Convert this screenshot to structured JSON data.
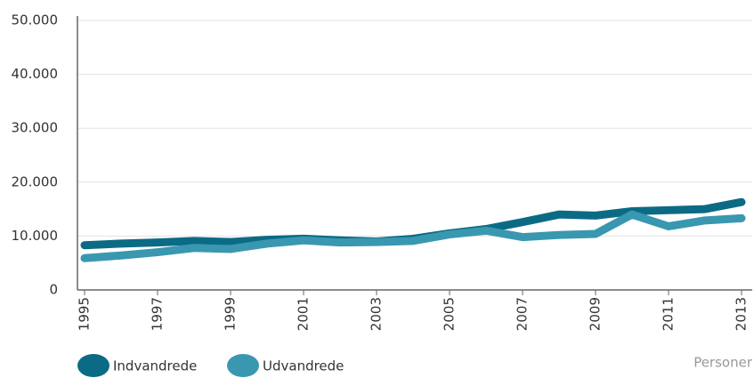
{
  "chart_data": {
    "type": "line",
    "x": [
      1995,
      1996,
      1997,
      1998,
      1999,
      2000,
      2001,
      2002,
      2003,
      2004,
      2005,
      2006,
      2007,
      2008,
      2009,
      2010,
      2011,
      2012,
      2013
    ],
    "series": [
      {
        "name": "Indvandrede",
        "color": "#0b6b85",
        "values": [
          8300,
          8600,
          8800,
          9100,
          8900,
          9300,
          9500,
          9200,
          9000,
          9500,
          10500,
          11300,
          12600,
          14000,
          13800,
          14600,
          14800,
          15000,
          16300
        ]
      },
      {
        "name": "Udvandrede",
        "color": "#3a97b0",
        "values": [
          5900,
          6400,
          7000,
          7800,
          7600,
          8600,
          9200,
          8800,
          8900,
          9100,
          10300,
          11000,
          9800,
          10200,
          10400,
          14000,
          11800,
          12900,
          13300
        ]
      }
    ],
    "xlim": [
      1995,
      2013
    ],
    "xticks": [
      1995,
      1997,
      1999,
      2001,
      2003,
      2005,
      2007,
      2009,
      2011,
      2013
    ],
    "ylim": [
      0,
      50000
    ],
    "yticks": [
      0,
      {
        "value": 10000,
        "label": "10.000"
      },
      {
        "value": 20000,
        "label": "20.000"
      },
      {
        "value": 30000,
        "label": "30.000"
      },
      {
        "value": 40000,
        "label": "40.000"
      },
      {
        "value": 50000,
        "label": "50.000"
      }
    ],
    "grid": true,
    "unit_label": "Personer"
  }
}
